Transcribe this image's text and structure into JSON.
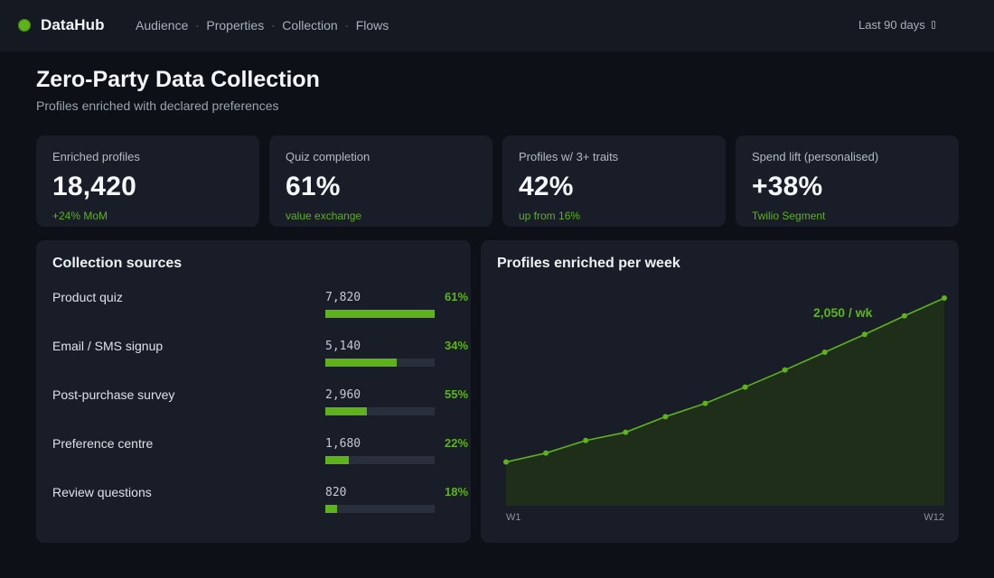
{
  "app": {
    "name": "DataHub"
  },
  "nav": {
    "items": [
      "Audience",
      "Properties",
      "Collection",
      "Flows"
    ],
    "separator": "·"
  },
  "date_range": {
    "label": "Last 90 days"
  },
  "page": {
    "title": "Zero-Party Data Collection",
    "subtitle": "Profiles enriched with declared preferences"
  },
  "kpis": [
    {
      "label": "Enriched profiles",
      "value": "18,420",
      "note": "+24% MoM"
    },
    {
      "label": "Quiz completion",
      "value": "61%",
      "note": "value exchange"
    },
    {
      "label": "Profiles w/ 3+ traits",
      "value": "42%",
      "note": "up from 16%"
    },
    {
      "label": "Spend lift (personalised)",
      "value": "+38%",
      "note": "Twilio Segment"
    }
  ],
  "sources": {
    "title": "Collection sources",
    "items": [
      {
        "name": "Product quiz",
        "count": "7,820",
        "pct_label": "61%",
        "bar_fill": 1.0
      },
      {
        "name": "Email / SMS signup",
        "count": "5,140",
        "pct_label": "34%",
        "bar_fill": 0.657
      },
      {
        "name": "Post-purchase survey",
        "count": "2,960",
        "pct_label": "55%",
        "bar_fill": 0.379
      },
      {
        "name": "Preference centre",
        "count": "1,680",
        "pct_label": "22%",
        "bar_fill": 0.215
      },
      {
        "name": "Review questions",
        "count": "820",
        "pct_label": "18%",
        "bar_fill": 0.105
      }
    ]
  },
  "colors": {
    "accent": "#5fb31a",
    "area_fill": "#1f2e19",
    "track": "#2a303b",
    "card": "#181d27",
    "background": "#0d1117"
  },
  "chart_data": {
    "type": "area",
    "title": "Profiles enriched per week",
    "x": [
      "W1",
      "W2",
      "W3",
      "W4",
      "W5",
      "W6",
      "W7",
      "W8",
      "W9",
      "W10",
      "W11",
      "W12"
    ],
    "x_tick_labels": [
      "W1",
      "W12"
    ],
    "series": [
      {
        "values": [
          1000,
          1120,
          1290,
          1400,
          1610,
          1790,
          2010,
          2240,
          2480,
          2720,
          2970,
          3210
        ]
      }
    ],
    "ylim": [
      410,
      3210
    ],
    "annotation": "2,050 / wk",
    "grid": false
  }
}
